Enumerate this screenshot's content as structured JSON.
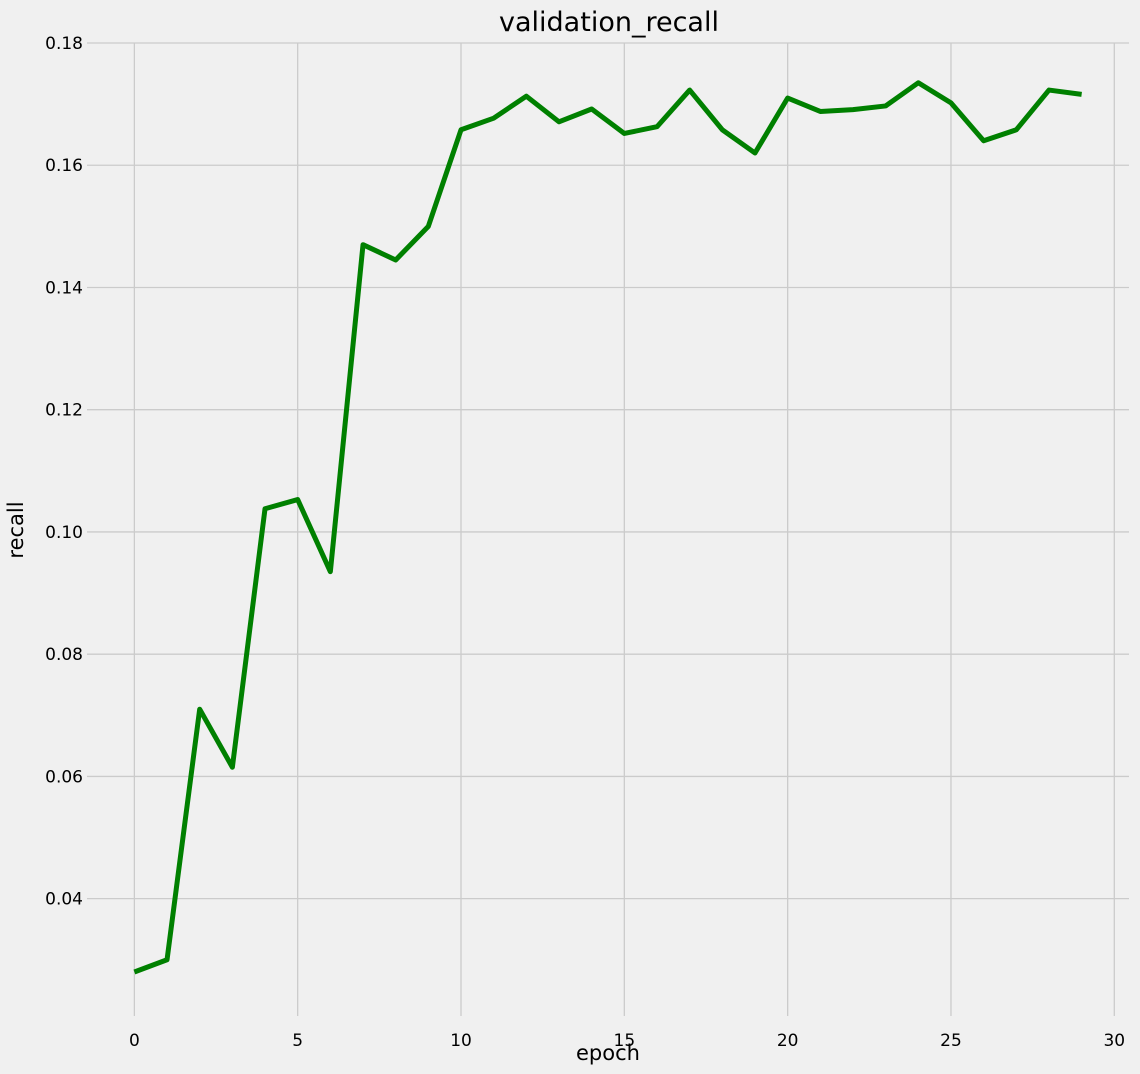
{
  "chart_data": {
    "type": "line",
    "title": "validation_recall",
    "xlabel": "epoch",
    "ylabel": "recall",
    "xlim": [
      -1.45,
      30.45
    ],
    "ylim": [
      0.0208,
      0.18
    ],
    "x_ticks": [
      0,
      5,
      10,
      15,
      20,
      25,
      30
    ],
    "y_ticks": [
      0.04,
      0.06,
      0.08,
      0.1,
      0.12,
      0.14,
      0.16,
      0.18
    ],
    "y_tick_labels": [
      "0.04",
      "0.06",
      "0.08",
      "0.10",
      "0.12",
      "0.14",
      "0.16",
      "0.18"
    ],
    "grid": true,
    "colors": {
      "line": "#008000",
      "background": "#f0f0f0",
      "grid": "#cbcbcb"
    },
    "series": [
      {
        "x": [
          0,
          1,
          2,
          3,
          4,
          5,
          6,
          7,
          8,
          9,
          10,
          11,
          12,
          13,
          14,
          15,
          16,
          17,
          18,
          19,
          20,
          21,
          22,
          23,
          24,
          25,
          26,
          27,
          28,
          29
        ],
        "values": [
          0.028,
          0.03,
          0.071,
          0.0615,
          0.1038,
          0.1053,
          0.0935,
          0.147,
          0.1445,
          0.15,
          0.1658,
          0.1677,
          0.1713,
          0.1671,
          0.1692,
          0.1652,
          0.1663,
          0.1723,
          0.1658,
          0.162,
          0.171,
          0.1688,
          0.1691,
          0.1697,
          0.1735,
          0.1702,
          0.164,
          0.1658,
          0.1723,
          0.1716
        ]
      }
    ]
  }
}
